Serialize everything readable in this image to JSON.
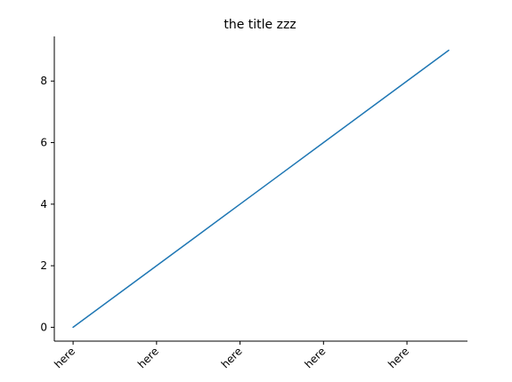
{
  "chart_data": {
    "type": "line",
    "title": "the title zzz",
    "xlabel": "",
    "ylabel": "",
    "x": [
      0,
      1,
      2,
      3,
      4,
      5,
      6,
      7,
      8,
      9
    ],
    "series": [
      {
        "values": [
          0,
          1,
          2,
          3,
          4,
          5,
          6,
          7,
          8,
          9
        ],
        "color": "#1f77b4"
      }
    ],
    "xlim": [
      -0.45,
      9.45
    ],
    "ylim": [
      -0.45,
      9.45
    ],
    "xticks": [
      0,
      2,
      4,
      6,
      8
    ],
    "xtick_labels": [
      "here",
      "here",
      "here",
      "here",
      "here"
    ],
    "xtick_rotation": 45,
    "yticks": [
      0,
      2,
      4,
      6,
      8
    ],
    "ytick_labels": [
      "0",
      "2",
      "4",
      "6",
      "8"
    ],
    "grid": false,
    "spines": [
      "left",
      "bottom"
    ]
  }
}
